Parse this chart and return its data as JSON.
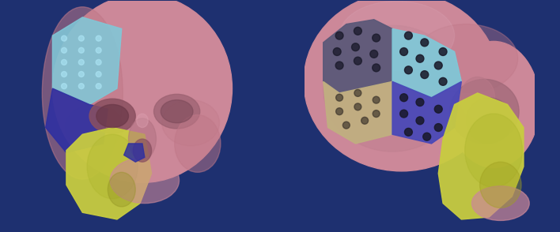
{
  "bg": "#1e3070",
  "skull_pink": "#cc8899",
  "skull_pink2": "#c07888",
  "skull_highlight": "#dda0b0",
  "implant_cyan": "#80c8d8",
  "implant_dark_gray": "#5a5878",
  "implant_tan": "#c0b080",
  "implant_blue": "#4848b8",
  "implant_deep_blue": "#3030a0",
  "bone_yellow": "#c8cc40",
  "bone_yellow2": "#b0b830",
  "hole_color": "#181828",
  "eye_dark": "#8a4858",
  "cheek_pink": "#b87888",
  "separator": "#888888",
  "fig_w": 7.08,
  "fig_h": 2.94,
  "dpi": 100
}
